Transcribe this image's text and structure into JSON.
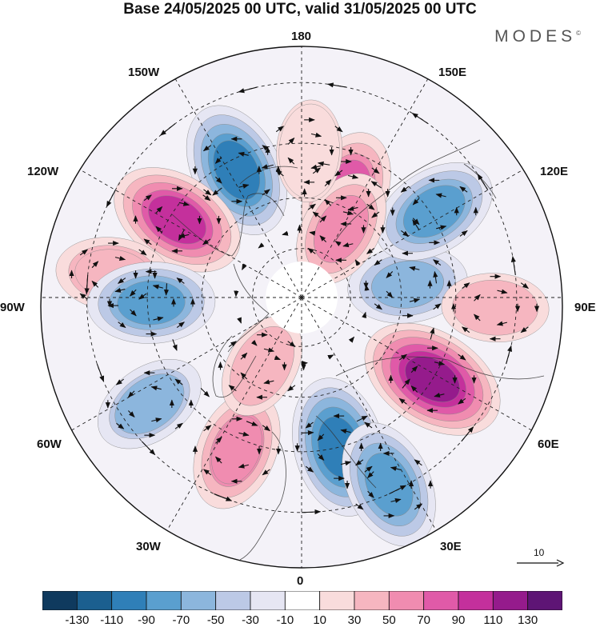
{
  "title": "Base 24/05/2025 00 UTC, valid 31/05/2025 00 UTC",
  "brand": "MODES",
  "brand_mark": "©",
  "projection": "north-polar-stereographic",
  "longitude_labels": {
    "lon_180": "180",
    "lon_150e": "150E",
    "lon_120e": "120E",
    "lon_90e": "90E",
    "lon_60e": "60E",
    "lon_30e": "30E",
    "lon_0": "0",
    "lon_30w": "30W",
    "lon_60w": "60W",
    "lon_90w": "90W",
    "lon_120w": "120W",
    "lon_150w": "150W"
  },
  "reference_vector": {
    "label": "10",
    "icon": "arrow-right-icon"
  },
  "colorbar": {
    "labels": [
      "-130",
      "-110",
      "-90",
      "-70",
      "-50",
      "-30",
      "-10",
      "10",
      "30",
      "50",
      "70",
      "90",
      "110",
      "130"
    ],
    "colors": [
      "#0f3a5e",
      "#1b5f8f",
      "#2f7fb8",
      "#5a9fcf",
      "#8cb6dd",
      "#bcc9e6",
      "#e6e6f3",
      "#ffffff",
      "#f9dcdc",
      "#f6b6c0",
      "#f08cb0",
      "#e05aa8",
      "#c4309c",
      "#951b8c",
      "#5e1575"
    ]
  },
  "anomaly_centers": [
    {
      "lon": -153,
      "lat": 48,
      "value": -95
    },
    {
      "lon": -122,
      "lat": 47,
      "value": 95
    },
    {
      "lon": -97,
      "lat": 36,
      "value": 50
    },
    {
      "lon": -88,
      "lat": 46,
      "value": -75
    },
    {
      "lon": -55,
      "lat": 37,
      "value": -50
    },
    {
      "lon": -23,
      "lat": 42,
      "value": 65
    },
    {
      "lon": -30,
      "lat": 66,
      "value": 35
    },
    {
      "lon": 14,
      "lat": 45,
      "value": -100
    },
    {
      "lon": 25,
      "lat": 32,
      "value": -80
    },
    {
      "lon": 58,
      "lat": 45,
      "value": 115
    },
    {
      "lon": 97,
      "lat": 58,
      "value": -60
    },
    {
      "lon": 87,
      "lat": 35,
      "value": 35
    },
    {
      "lon": 123,
      "lat": 44,
      "value": -75
    },
    {
      "lon": 157,
      "lat": 56,
      "value": 72
    },
    {
      "lon": 150,
      "lat": 66,
      "value": 60
    },
    {
      "lon": 177,
      "lat": 47,
      "value": 25
    }
  ]
}
